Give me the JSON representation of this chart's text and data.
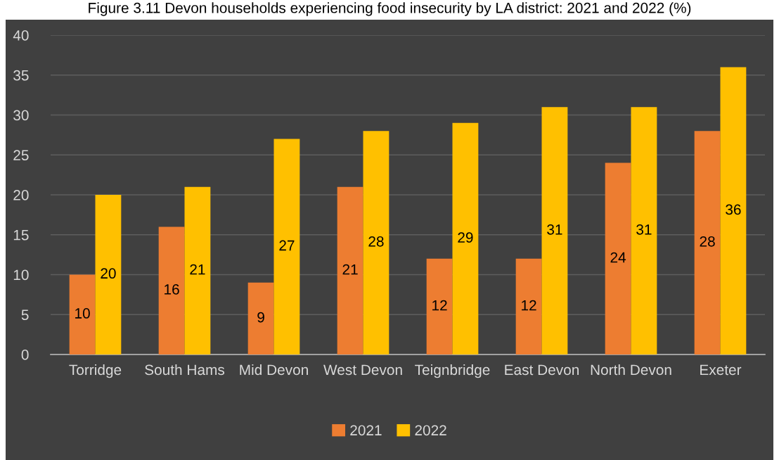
{
  "chart_data": {
    "type": "bar",
    "title": "Figure 3.11 Devon households experiencing food insecurity by LA district: 2021 and 2022 (%)",
    "categories": [
      "Torridge",
      "South Hams",
      "Mid Devon",
      "West Devon",
      "Teignbridge",
      "East Devon",
      "North Devon",
      "Exeter"
    ],
    "series": [
      {
        "name": "2021",
        "color": "#ed7d31",
        "values": [
          10,
          16,
          9,
          21,
          12,
          12,
          24,
          28
        ]
      },
      {
        "name": "2022",
        "color": "#ffc000",
        "values": [
          20,
          21,
          27,
          28,
          29,
          31,
          31,
          36
        ]
      }
    ],
    "ylim": [
      0,
      40
    ],
    "yticks": [
      0,
      5,
      10,
      15,
      20,
      25,
      30,
      35,
      40
    ],
    "grid": "y",
    "legend": "bottom",
    "data_labels": true
  }
}
